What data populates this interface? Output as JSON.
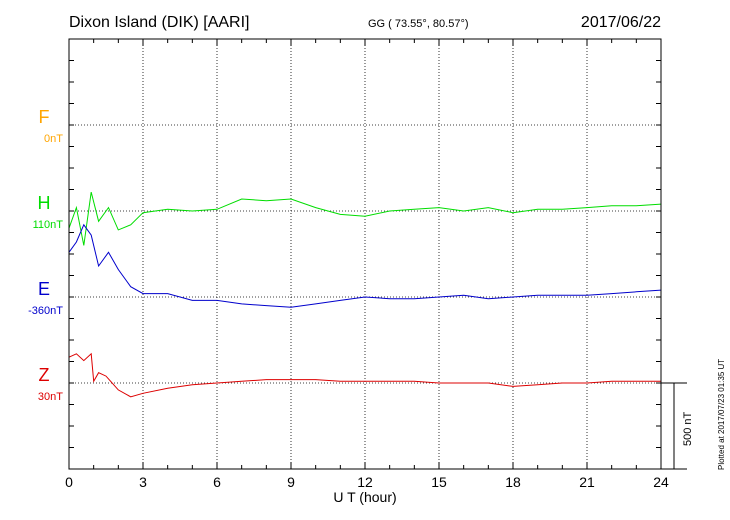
{
  "header": {
    "station": "Dixon Island (DIK)  [AARI]",
    "coords": "GG ( 73.55°,  80.57°)",
    "date": "2017/06/22"
  },
  "plotted_note": "Plotted at 2017/07/23 01:35 UT",
  "scale_label": "500 nT",
  "colors": {
    "F": "#ffa500",
    "H": "#00dd00",
    "E": "#0000cc",
    "Z": "#dd0000"
  },
  "chart_data": {
    "type": "line",
    "xlabel": "U T (hour)",
    "xlim": [
      0,
      24
    ],
    "xticks": [
      0,
      3,
      6,
      9,
      12,
      15,
      18,
      21,
      24
    ],
    "channels": [
      {
        "name": "F",
        "baseline": "0nT"
      },
      {
        "name": "H",
        "baseline": "110nT"
      },
      {
        "name": "E",
        "baseline": "-360nT"
      },
      {
        "name": "Z",
        "baseline": "30nT"
      }
    ],
    "series": [
      {
        "name": "H",
        "x": [
          0,
          0.3,
          0.6,
          0.9,
          1.2,
          1.6,
          2,
          2.5,
          3,
          4,
          5,
          6,
          7,
          8,
          9,
          10,
          11,
          12,
          13,
          14,
          15,
          16,
          17,
          18,
          19,
          20,
          21,
          22,
          23,
          24
        ],
        "y": [
          -100,
          20,
          -200,
          110,
          -60,
          20,
          -110,
          -80,
          -10,
          10,
          0,
          10,
          70,
          60,
          70,
          20,
          -20,
          -30,
          0,
          10,
          20,
          0,
          20,
          -10,
          10,
          10,
          20,
          30,
          30,
          40
        ]
      },
      {
        "name": "E",
        "x": [
          0,
          0.3,
          0.6,
          0.9,
          1.2,
          1.6,
          2,
          2.5,
          3,
          4,
          5,
          6,
          7,
          8,
          9,
          10,
          11,
          12,
          13,
          14,
          15,
          16,
          17,
          18,
          19,
          20,
          21,
          22,
          23,
          24
        ],
        "y": [
          260,
          320,
          420,
          360,
          180,
          260,
          160,
          60,
          20,
          20,
          -20,
          -20,
          -40,
          -50,
          -60,
          -40,
          -20,
          0,
          -10,
          -10,
          0,
          10,
          -10,
          0,
          10,
          10,
          10,
          20,
          30,
          40
        ]
      },
      {
        "name": "Z",
        "x": [
          0,
          0.3,
          0.6,
          0.9,
          1.0,
          1.2,
          1.5,
          2,
          2.5,
          3,
          4,
          5,
          6,
          7,
          8,
          9,
          10,
          11,
          12,
          13,
          14,
          15,
          16,
          17,
          18,
          19,
          20,
          21,
          22,
          23,
          24
        ],
        "y": [
          150,
          170,
          130,
          170,
          10,
          60,
          40,
          -40,
          -80,
          -60,
          -30,
          -10,
          0,
          10,
          20,
          20,
          20,
          10,
          10,
          10,
          10,
          0,
          0,
          0,
          -20,
          -10,
          0,
          0,
          10,
          10,
          10
        ]
      }
    ]
  }
}
